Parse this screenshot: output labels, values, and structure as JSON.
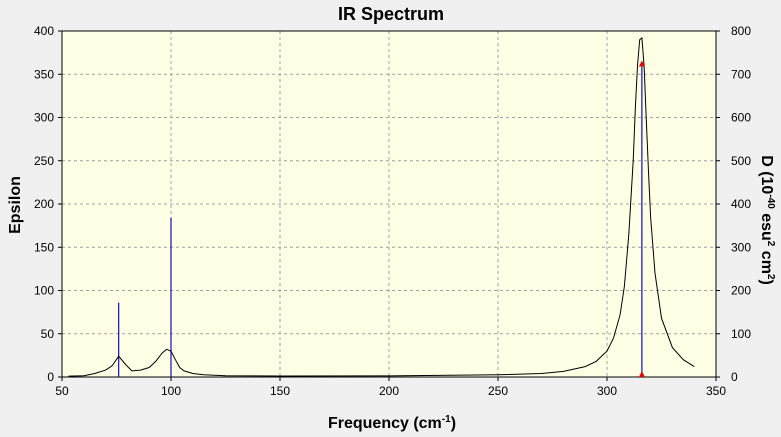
{
  "chart_data": {
    "type": "line",
    "title": "IR Spectrum",
    "xlabel": {
      "main": "Frequency (cm",
      "sup": "-1",
      "close": ")"
    },
    "ylabel": "Epsilon",
    "y2label": {
      "prefix": "D (10",
      "sup1": "-40",
      "mid": " esu",
      "sup2": "2",
      "mid2": " cm",
      "sup3": "2",
      "close": ")"
    },
    "xlim": [
      50,
      350
    ],
    "ylim": [
      0,
      400
    ],
    "y2lim": [
      0,
      800
    ],
    "xticks": [
      50,
      100,
      150,
      200,
      250,
      300,
      350
    ],
    "yticks": [
      0,
      50,
      100,
      150,
      200,
      250,
      300,
      350,
      400
    ],
    "y2ticks": [
      0,
      100,
      200,
      300,
      400,
      500,
      600,
      700,
      800
    ],
    "grid": true,
    "spectrum": {
      "name": "Epsilon",
      "x": [
        53,
        60,
        65,
        70,
        73,
        76,
        79,
        82,
        86,
        90,
        93,
        96,
        98,
        100,
        102,
        104,
        106,
        110,
        115,
        125,
        150,
        200,
        250,
        270,
        280,
        290,
        295,
        300,
        303,
        306,
        308,
        310,
        312,
        313,
        314,
        315,
        316,
        317,
        318,
        319,
        320,
        322,
        325,
        330,
        335,
        340
      ],
      "y": [
        1,
        1.5,
        4,
        8,
        13,
        24,
        15,
        7,
        8,
        11,
        18,
        28,
        32,
        30,
        20,
        11,
        7,
        4,
        2.5,
        1.5,
        1.2,
        1.3,
        2.5,
        4,
        6.5,
        12,
        18,
        30,
        45,
        72,
        105,
        165,
        250,
        310,
        360,
        390,
        392,
        360,
        300,
        240,
        185,
        120,
        68,
        34,
        20,
        12
      ]
    },
    "sticks": {
      "name": "D",
      "x": [
        76,
        100,
        316
      ],
      "y": [
        172,
        368,
        725
      ]
    }
  }
}
